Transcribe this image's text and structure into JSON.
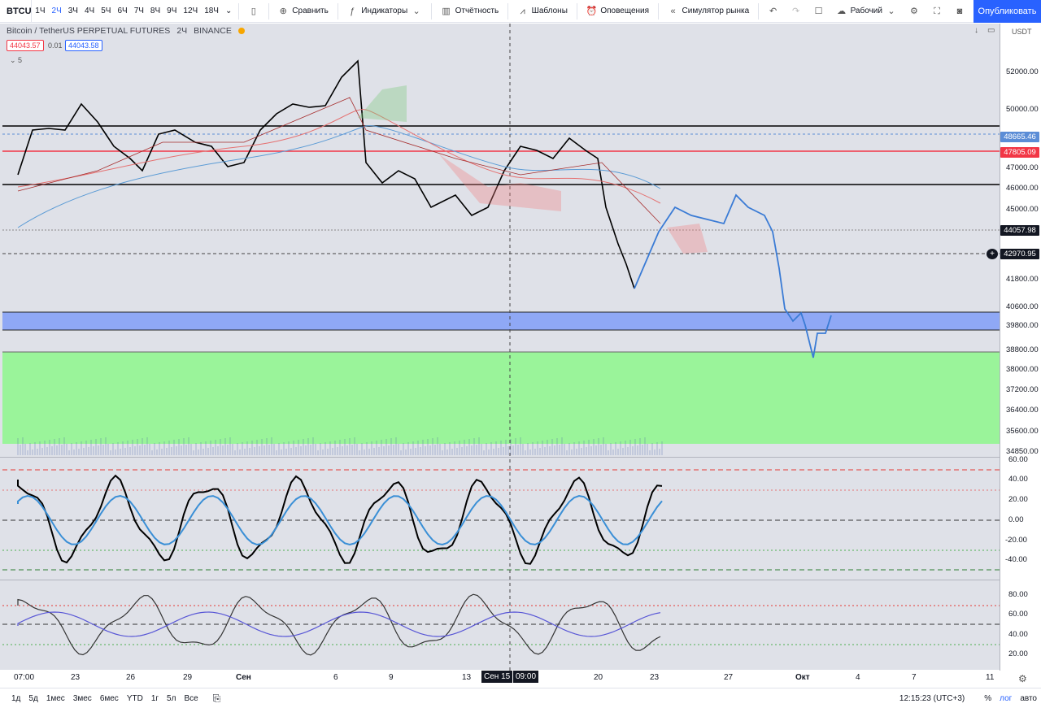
{
  "toolbar": {
    "symbol": "BTCUSDTPERP",
    "intervals": [
      "1Ч",
      "2Ч",
      "3Ч",
      "4Ч",
      "5Ч",
      "6Ч",
      "7Ч",
      "8Ч",
      "9Ч",
      "12Ч",
      "18Ч"
    ],
    "selected_interval": "2Ч",
    "compare": "Сравнить",
    "indicators": "Индикаторы",
    "reports": "Отчётность",
    "templates": "Шаблоны",
    "alerts": "Оповещения",
    "replay": "Симулятор рынка",
    "layout": "Рабочий",
    "publish": "Опубликовать"
  },
  "legend": {
    "title": "Bitcoin / TetherUS PERPETUAL FUTURES",
    "interval": "2Ч",
    "exchange": "BINANCE",
    "bid": "44043.57",
    "spread": "0.01",
    "ask": "44043.58",
    "collapse": "5"
  },
  "currency": "USDT",
  "price_axis": [
    "52000.00",
    "50000.00",
    "48665.46",
    "47805.09",
    "47000.00",
    "46000.00",
    "45000.00",
    "44057.98",
    "42970.95",
    "41800.00",
    "40600.00",
    "39800.00",
    "38800.00",
    "38000.00",
    "37200.00",
    "36400.00",
    "35600.00",
    "34850.00"
  ],
  "osc1_axis": [
    "60.00",
    "40.00",
    "20.00",
    "0.00",
    "-20.00",
    "-40.00"
  ],
  "osc2_axis": [
    "80.00",
    "60.00",
    "40.00",
    "20.00"
  ],
  "time_axis": [
    "07:00",
    "23",
    "26",
    "29",
    "Сен",
    "6",
    "9",
    "13",
    "Сен 15",
    "09:00",
    "20",
    "23",
    "27",
    "Окт",
    "4",
    "7",
    "11"
  ],
  "bottom": {
    "ranges": [
      "1д",
      "5д",
      "1мес",
      "3мес",
      "6мес",
      "YTD",
      "1г",
      "5л",
      "Все"
    ],
    "clock": "12:15:23 (UTC+3)",
    "percent": "%",
    "log": "лог",
    "auto": "авто"
  },
  "colors": {
    "accent": "#2962ff",
    "green_zone": "#9af49a",
    "blue_zone": "#8fa8f5",
    "red_line": "#f23645"
  }
}
